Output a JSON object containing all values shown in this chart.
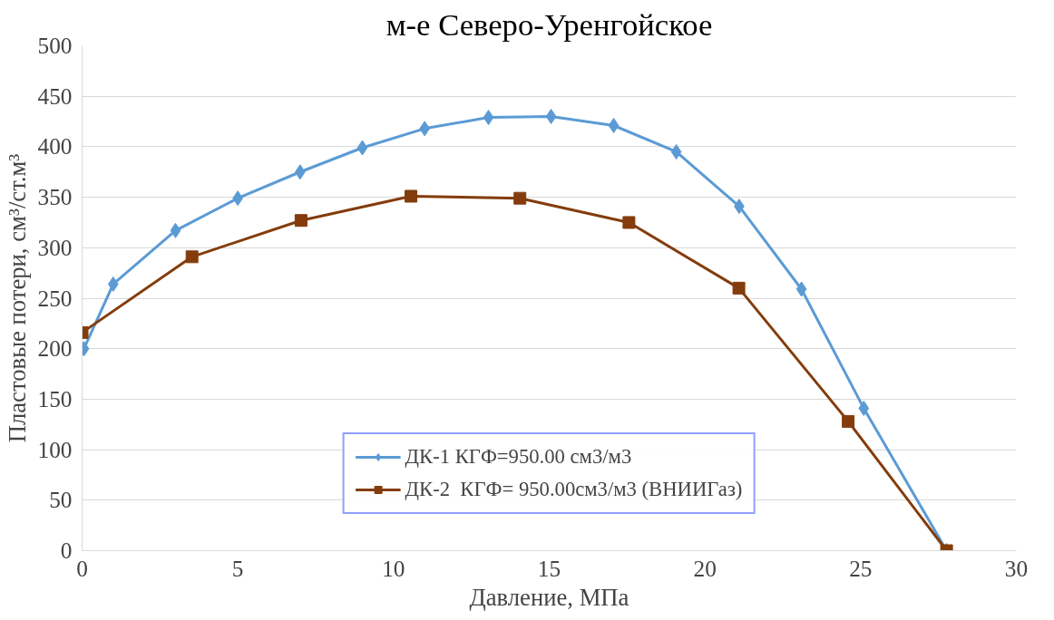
{
  "chart_data": {
    "type": "line",
    "title": "м-е Северо-Уренгойское",
    "xlabel": "Давление, МПа",
    "ylabel": "Пластовые потери, см³/ст.м³",
    "xlim": [
      0,
      30
    ],
    "xticks": [
      0,
      5,
      10,
      15,
      20,
      25,
      30
    ],
    "ylim": [
      0,
      500
    ],
    "yticks": [
      0,
      50,
      100,
      150,
      200,
      250,
      300,
      350,
      400,
      450,
      500
    ],
    "grid": "y",
    "legend": "bottom",
    "line_style": "solid",
    "series": [
      {
        "name": "ДК-1 КГФ=950.00 см3/м3",
        "color": "#5b9bd5",
        "marker": "diamond",
        "x": [
          0.06,
          1.0,
          3.0,
          5.0,
          7.0,
          9.0,
          11.0,
          13.05,
          15.06,
          17.07,
          19.08,
          21.1,
          23.1,
          25.1,
          27.76
        ],
        "values": [
          200,
          264,
          317,
          349,
          375,
          399,
          418,
          429,
          430,
          421,
          395,
          341,
          259,
          141,
          0
        ]
      },
      {
        "name": "ДК-2  КГФ= 950.00см3/м3 (ВНИИГаз)",
        "color": "#843c0c",
        "marker": "square",
        "x": [
          0.0,
          3.53,
          7.03,
          10.56,
          14.06,
          17.56,
          21.09,
          24.6,
          27.76
        ],
        "values": [
          216,
          291,
          327,
          351,
          349,
          325,
          260,
          128,
          0
        ]
      }
    ]
  }
}
